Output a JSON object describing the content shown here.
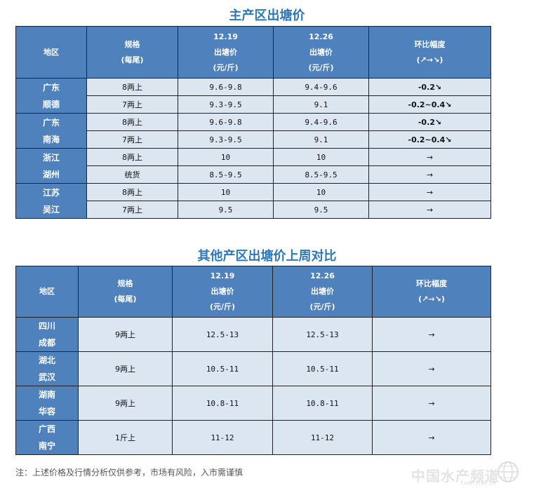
{
  "main_table": {
    "title": "主产区出塘价",
    "headers": {
      "region": "地区",
      "spec": [
        "规格",
        "(每尾)"
      ],
      "date1": [
        "12.19",
        "出塘价",
        "(元/斤)"
      ],
      "date2": [
        "12.26",
        "出塘价",
        "(元/斤)"
      ],
      "change": [
        "环比幅度",
        "(↗→↘)"
      ]
    },
    "groups": [
      {
        "region": [
          "广东",
          "顺德"
        ],
        "rows": [
          {
            "spec": "8两上",
            "p1": "9.6-9.8",
            "p2": "9.4-9.6",
            "chg": "-0.2↘",
            "trend": "down"
          },
          {
            "spec": "7两上",
            "p1": "9.3-9.5",
            "p2": "9.1",
            "chg": "-0.2~0.4↘",
            "trend": "down"
          }
        ]
      },
      {
        "region": [
          "广东",
          "南海"
        ],
        "rows": [
          {
            "spec": "8两上",
            "p1": "9.6-9.8",
            "p2": "9.4-9.6",
            "chg": "-0.2↘",
            "trend": "down"
          },
          {
            "spec": "7两上",
            "p1": "9.3-9.5",
            "p2": "9.1",
            "chg": "-0.2~0.4↘",
            "trend": "down"
          }
        ]
      },
      {
        "region": [
          "浙江",
          "湖州"
        ],
        "rows": [
          {
            "spec": "8两上",
            "p1": "10",
            "p2": "10",
            "chg": "→",
            "trend": "flat"
          },
          {
            "spec": "统货",
            "p1": "8.5-9.5",
            "p2": "8.5-9.5",
            "chg": "→",
            "trend": "flat"
          }
        ]
      },
      {
        "region": [
          "江苏",
          "吴江"
        ],
        "rows": [
          {
            "spec": "8两上",
            "p1": "10",
            "p2": "10",
            "chg": "→",
            "trend": "flat"
          },
          {
            "spec": "7两上",
            "p1": "9.5",
            "p2": "9.5",
            "chg": "→",
            "trend": "flat"
          }
        ]
      }
    ]
  },
  "other_table": {
    "title": "其他产区出塘价上周对比",
    "headers": {
      "region": "地区",
      "spec": [
        "规格",
        "(每尾)"
      ],
      "date1": [
        "12.19",
        "出塘价",
        "(元/斤)"
      ],
      "date2": [
        "12.26",
        "出塘价",
        "(元/斤)"
      ],
      "change": [
        "环比幅度",
        "(↗→↘)"
      ]
    },
    "rows": [
      {
        "region": [
          "四川",
          "成都"
        ],
        "spec": "9两上",
        "p1": "12.5-13",
        "p2": "12.5-13",
        "chg": "→"
      },
      {
        "region": [
          "湖北",
          "武汉"
        ],
        "spec": "9两上",
        "p1": "10.5-11",
        "p2": "10.5-11",
        "chg": "→"
      },
      {
        "region": [
          "湖南",
          "华容"
        ],
        "spec": "9两上",
        "p1": "10.8-11",
        "p2": "10.8-11",
        "chg": "→"
      },
      {
        "region": [
          "广西",
          "南宁"
        ],
        "spec": "1斤上",
        "p1": "11-12",
        "p2": "11-12",
        "chg": "→"
      }
    ]
  },
  "note": "注：上述价格及行情分析仅供参考，市场有风险，入市需谨慎",
  "watermark": {
    "text": "中国水产频道",
    "sub": "fishfirst.cn"
  },
  "colors": {
    "header_bg": "#4f81bd",
    "cell_bg": "#dce6f1",
    "title": "#2c78b8",
    "down": "#12a02f"
  }
}
